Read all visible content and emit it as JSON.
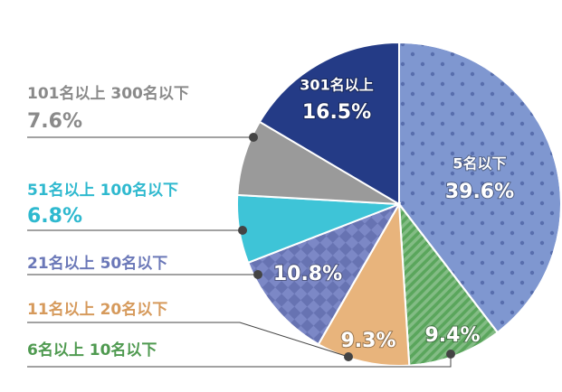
{
  "chart_data": {
    "type": "pie",
    "categories": [
      "5名以下",
      "6名以上 10名以下",
      "11名以上 20名以下",
      "21名以上 50名以下",
      "51名以上 100名以下",
      "101名以上 300名以下",
      "301名以上"
    ],
    "values": [
      39.6,
      9.4,
      9.3,
      10.8,
      6.8,
      7.6,
      16.5
    ],
    "value_labels": [
      "39.6%",
      "9.4%",
      "9.3%",
      "10.8%",
      "6.8%",
      "7.6%",
      "16.5%"
    ],
    "colors": [
      "#7f97d0",
      "#5aa65c",
      "#e8b47c",
      "#7c88c6",
      "#3ec4d7",
      "#9a9a9a",
      "#243b86"
    ]
  }
}
